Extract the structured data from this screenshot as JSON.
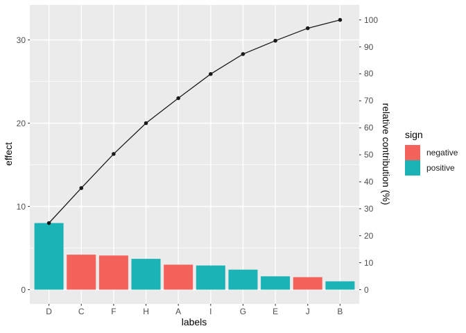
{
  "chart_data": {
    "type": "pareto (bar + cumulative line)",
    "title": "",
    "xlabel": "labels",
    "ylabel_left": "effect",
    "ylabel_right": "relative contribution (%)",
    "categories": [
      "D",
      "C",
      "F",
      "H",
      "A",
      "I",
      "G",
      "E",
      "J",
      "B"
    ],
    "bars": {
      "name": "effect (absolute value)",
      "values": [
        8.0,
        4.2,
        4.1,
        3.7,
        3.0,
        2.9,
        2.4,
        1.6,
        1.5,
        1.0
      ],
      "signs": [
        "positive",
        "negative",
        "negative",
        "positive",
        "negative",
        "positive",
        "positive",
        "positive",
        "negative",
        "positive"
      ]
    },
    "cumulative_line": {
      "name": "cumulative relative contribution",
      "values_effect_units": [
        8.0,
        12.2,
        16.3,
        20.0,
        23.0,
        25.9,
        28.3,
        29.9,
        31.4,
        32.4
      ],
      "pct": [
        24.7,
        37.7,
        50.3,
        61.7,
        71.0,
        79.9,
        87.3,
        92.3,
        96.9,
        100.0
      ],
      "total_effect": 32.4
    },
    "left_axis": {
      "ticks": [
        0,
        10,
        20,
        30
      ],
      "minor_gridlines": [
        5,
        15,
        25
      ],
      "range": [
        0,
        34.2
      ]
    },
    "right_axis": {
      "ticks": [
        0,
        10,
        20,
        30,
        40,
        50,
        60,
        70,
        80,
        90,
        100
      ],
      "range_pct": [
        0,
        100
      ]
    },
    "grid": {
      "style": "white major and minor lines on grey panel",
      "legend_position": "right"
    }
  },
  "legend": {
    "title": "sign",
    "items": [
      {
        "label": "negative",
        "color": "#F4625C"
      },
      {
        "label": "positive",
        "color": "#1AB3B6"
      }
    ]
  },
  "colors": {
    "background": "#FFFFFF",
    "panel": "#EBEBEB",
    "grid_major": "#FFFFFF",
    "grid_minor": "#FFFFFF",
    "bar_negative": "#F4625C",
    "bar_positive": "#1AB3B6",
    "line": "#1A1A1A",
    "point": "#1A1A1A",
    "tick_mark": "#333333",
    "tick_label": "#4D4D4D",
    "axis_title": "#000000"
  }
}
